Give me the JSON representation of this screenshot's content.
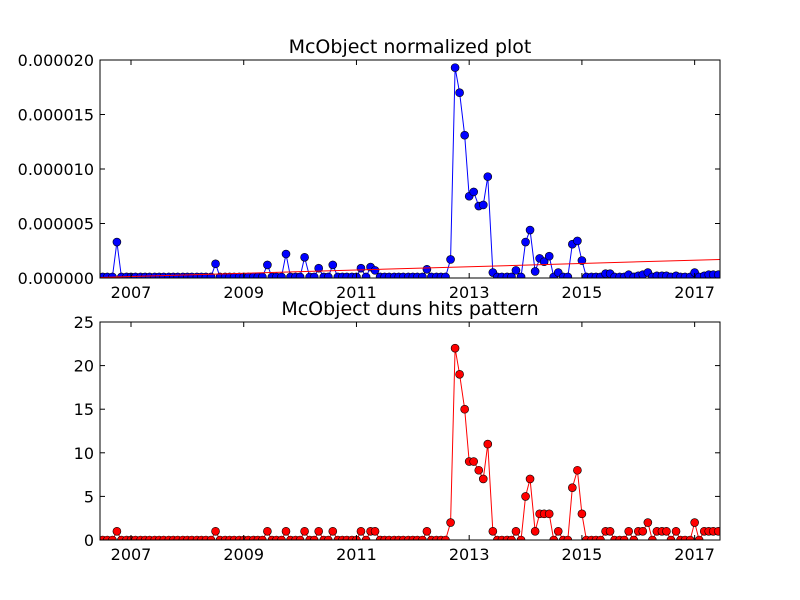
{
  "chart_data": [
    {
      "type": "line",
      "title": "McObject normalized plot",
      "xlabel": "",
      "ylabel": "",
      "xlim": [
        2006.45,
        2017.45
      ],
      "ylim": [
        0,
        2e-05
      ],
      "x_ticks": [
        2007,
        2009,
        2011,
        2013,
        2015,
        2017
      ],
      "x_tick_labels": [
        "2007",
        "2009",
        "2011",
        "2013",
        "2015",
        "2017"
      ],
      "y_ticks": [
        0,
        5e-06,
        1e-05,
        1.5e-05,
        2e-05
      ],
      "y_tick_labels": [
        "0.000000",
        "0.000005",
        "0.000010",
        "0.000015",
        "0.000020"
      ],
      "series": [
        {
          "name": "normalized hits",
          "color": "#0000ff",
          "marker_color": "#0000ff",
          "line_color": "#0000ff",
          "x": [
            2006.5,
            2006.58,
            2006.67,
            2006.75,
            2006.83,
            2006.92,
            2007.0,
            2007.08,
            2007.17,
            2007.25,
            2007.33,
            2007.42,
            2007.5,
            2007.58,
            2007.67,
            2007.75,
            2007.83,
            2007.92,
            2008.0,
            2008.08,
            2008.17,
            2008.25,
            2008.33,
            2008.42,
            2008.5,
            2008.58,
            2008.67,
            2008.75,
            2008.83,
            2008.92,
            2009.0,
            2009.08,
            2009.17,
            2009.25,
            2009.33,
            2009.42,
            2009.5,
            2009.58,
            2009.67,
            2009.75,
            2009.83,
            2009.92,
            2010.0,
            2010.08,
            2010.17,
            2010.25,
            2010.33,
            2010.42,
            2010.5,
            2010.58,
            2010.67,
            2010.75,
            2010.83,
            2010.92,
            2011.0,
            2011.08,
            2011.17,
            2011.25,
            2011.33,
            2011.42,
            2011.5,
            2011.58,
            2011.67,
            2011.75,
            2011.83,
            2011.92,
            2012.0,
            2012.08,
            2012.17,
            2012.25,
            2012.33,
            2012.42,
            2012.5,
            2012.58,
            2012.67,
            2012.75,
            2012.83,
            2012.92,
            2013.0,
            2013.08,
            2013.17,
            2013.25,
            2013.33,
            2013.42,
            2013.5,
            2013.58,
            2013.67,
            2013.75,
            2013.83,
            2013.92,
            2014.0,
            2014.08,
            2014.17,
            2014.25,
            2014.33,
            2014.42,
            2014.5,
            2014.58,
            2014.67,
            2014.75,
            2014.83,
            2014.92,
            2015.0,
            2015.08,
            2015.17,
            2015.25,
            2015.33,
            2015.42,
            2015.5,
            2015.58,
            2015.67,
            2015.75,
            2015.83,
            2015.92,
            2016.0,
            2016.08,
            2016.17,
            2016.25,
            2016.33,
            2016.42,
            2016.5,
            2016.58,
            2016.67,
            2016.75,
            2016.83,
            2016.92,
            2017.0,
            2017.08,
            2017.17,
            2017.25,
            2017.33,
            2017.42
          ],
          "y": [
            1e-07,
            1e-07,
            1e-07,
            3.3e-06,
            1e-07,
            1e-07,
            1e-07,
            1e-07,
            1e-07,
            1e-07,
            1e-07,
            1e-07,
            1e-07,
            1e-07,
            1e-07,
            1e-07,
            1e-07,
            1e-07,
            1e-07,
            1e-07,
            1e-07,
            1e-07,
            1e-07,
            1e-07,
            1.3e-06,
            1e-07,
            1e-07,
            1e-07,
            1e-07,
            1e-07,
            1e-07,
            1e-07,
            1e-07,
            1e-07,
            1e-07,
            1.2e-06,
            1e-07,
            1e-07,
            1e-07,
            2.2e-06,
            1e-07,
            1e-07,
            1e-07,
            1.9e-06,
            1e-07,
            1e-07,
            9e-07,
            1e-07,
            1e-07,
            1.2e-06,
            1e-07,
            1e-07,
            1e-07,
            1e-07,
            1e-07,
            9e-07,
            1e-07,
            1e-06,
            7e-07,
            1e-07,
            1e-07,
            1e-07,
            1e-07,
            1e-07,
            1e-07,
            1e-07,
            1e-07,
            1e-07,
            1e-07,
            8e-07,
            1e-07,
            1e-07,
            1e-07,
            1e-07,
            1.7e-06,
            1.93e-05,
            1.7e-05,
            1.31e-05,
            7.5e-06,
            7.9e-06,
            6.6e-06,
            6.7e-06,
            9.3e-06,
            5e-07,
            1e-07,
            1e-07,
            1e-07,
            1e-07,
            7e-07,
            1e-07,
            3.3e-06,
            4.4e-06,
            6e-07,
            1.8e-06,
            1.5e-06,
            2e-06,
            1e-07,
            5e-07,
            1e-07,
            1e-07,
            3.1e-06,
            3.4e-06,
            1.6e-06,
            1e-07,
            1e-07,
            1e-07,
            1e-07,
            4e-07,
            4e-07,
            1e-07,
            1e-07,
            1e-07,
            3e-07,
            1e-07,
            2e-07,
            3e-07,
            5e-07,
            1e-07,
            2e-07,
            2e-07,
            2e-07,
            1e-07,
            2e-07,
            1e-07,
            1e-07,
            1e-07,
            5e-07,
            1e-07,
            2e-07,
            3e-07,
            3e-07,
            3e-07
          ]
        },
        {
          "name": "trend line",
          "color": "#ff0000",
          "style": "line",
          "x": [
            2006.45,
            2017.45
          ],
          "y": [
            5e-08,
            1.7e-06
          ]
        }
      ]
    },
    {
      "type": "line",
      "title": "McObject duns hits pattern",
      "xlabel": "",
      "ylabel": "",
      "xlim": [
        2006.45,
        2017.45
      ],
      "ylim": [
        0,
        25
      ],
      "x_ticks": [
        2007,
        2009,
        2011,
        2013,
        2015,
        2017
      ],
      "x_tick_labels": [
        "2007",
        "2009",
        "2011",
        "2013",
        "2015",
        "2017"
      ],
      "y_ticks": [
        0,
        5,
        10,
        15,
        20,
        25
      ],
      "y_tick_labels": [
        "0",
        "5",
        "10",
        "15",
        "20",
        "25"
      ],
      "series": [
        {
          "name": "duns hits",
          "color": "#ff0000",
          "marker_color": "#ff0000",
          "line_color": "#ff0000",
          "x": [
            2006.5,
            2006.58,
            2006.67,
            2006.75,
            2006.83,
            2006.92,
            2007.0,
            2007.08,
            2007.17,
            2007.25,
            2007.33,
            2007.42,
            2007.5,
            2007.58,
            2007.67,
            2007.75,
            2007.83,
            2007.92,
            2008.0,
            2008.08,
            2008.17,
            2008.25,
            2008.33,
            2008.42,
            2008.5,
            2008.58,
            2008.67,
            2008.75,
            2008.83,
            2008.92,
            2009.0,
            2009.08,
            2009.17,
            2009.25,
            2009.33,
            2009.42,
            2009.5,
            2009.58,
            2009.67,
            2009.75,
            2009.83,
            2009.92,
            2010.0,
            2010.08,
            2010.17,
            2010.25,
            2010.33,
            2010.42,
            2010.5,
            2010.58,
            2010.67,
            2010.75,
            2010.83,
            2010.92,
            2011.0,
            2011.08,
            2011.17,
            2011.25,
            2011.33,
            2011.42,
            2011.5,
            2011.58,
            2011.67,
            2011.75,
            2011.83,
            2011.92,
            2012.0,
            2012.08,
            2012.17,
            2012.25,
            2012.33,
            2012.42,
            2012.5,
            2012.58,
            2012.67,
            2012.75,
            2012.83,
            2012.92,
            2013.0,
            2013.08,
            2013.17,
            2013.25,
            2013.33,
            2013.42,
            2013.5,
            2013.58,
            2013.67,
            2013.75,
            2013.83,
            2013.92,
            2014.0,
            2014.08,
            2014.17,
            2014.25,
            2014.33,
            2014.42,
            2014.5,
            2014.58,
            2014.67,
            2014.75,
            2014.83,
            2014.92,
            2015.0,
            2015.08,
            2015.17,
            2015.25,
            2015.33,
            2015.42,
            2015.5,
            2015.58,
            2015.67,
            2015.75,
            2015.83,
            2015.92,
            2016.0,
            2016.08,
            2016.17,
            2016.25,
            2016.33,
            2016.42,
            2016.5,
            2016.58,
            2016.67,
            2016.75,
            2016.83,
            2016.92,
            2017.0,
            2017.08,
            2017.17,
            2017.25,
            2017.33,
            2017.42
          ],
          "y": [
            0,
            0,
            0,
            1,
            0,
            0,
            0,
            0,
            0,
            0,
            0,
            0,
            0,
            0,
            0,
            0,
            0,
            0,
            0,
            0,
            0,
            0,
            0,
            0,
            1,
            0,
            0,
            0,
            0,
            0,
            0,
            0,
            0,
            0,
            0,
            1,
            0,
            0,
            0,
            1,
            0,
            0,
            0,
            1,
            0,
            0,
            1,
            0,
            0,
            1,
            0,
            0,
            0,
            0,
            0,
            1,
            0,
            1,
            1,
            0,
            0,
            0,
            0,
            0,
            0,
            0,
            0,
            0,
            0,
            1,
            0,
            0,
            0,
            0,
            2,
            22,
            19,
            15,
            9,
            9,
            8,
            7,
            11,
            1,
            0,
            0,
            0,
            0,
            1,
            0,
            5,
            7,
            1,
            3,
            3,
            3,
            0,
            1,
            0,
            0,
            6,
            8,
            3,
            0,
            0,
            0,
            0,
            1,
            1,
            0,
            0,
            0,
            1,
            0,
            1,
            1,
            2,
            0,
            1,
            1,
            1,
            0,
            1,
            0,
            0,
            0,
            2,
            0,
            1,
            1,
            1,
            1
          ]
        }
      ]
    }
  ]
}
